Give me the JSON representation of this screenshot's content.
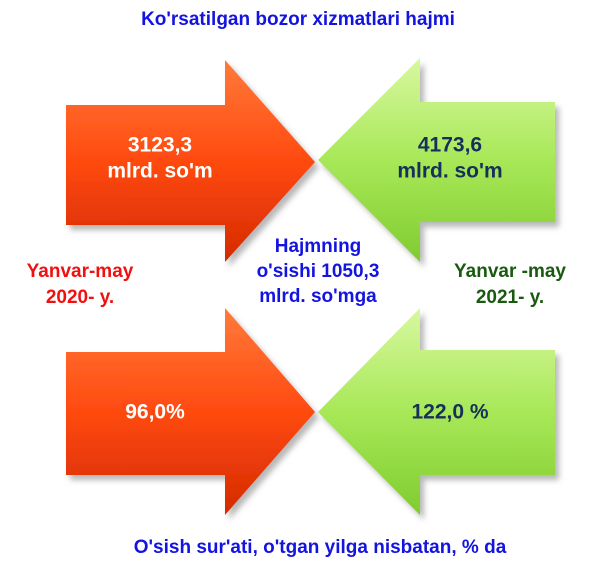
{
  "title": "Ko'rsatilgan bozor xizmatlari hajmi",
  "left": {
    "period": [
      "Yanvar-may",
      "2020- y."
    ],
    "volume": [
      "3123,3",
      "mlrd.  so'm"
    ],
    "growth": "96,0%"
  },
  "right": {
    "period": [
      "Yanvar -may",
      "2021- y."
    ],
    "volume": [
      "4173,6",
      "mlrd.  so'm"
    ],
    "growth": "122,0 %"
  },
  "center": [
    "Hajmning",
    "o'sishi 1050,3",
    "mlrd.  so'mga"
  ],
  "footer": "O'sish sur'ati, o'tgan yilga nisbatan, % da"
}
